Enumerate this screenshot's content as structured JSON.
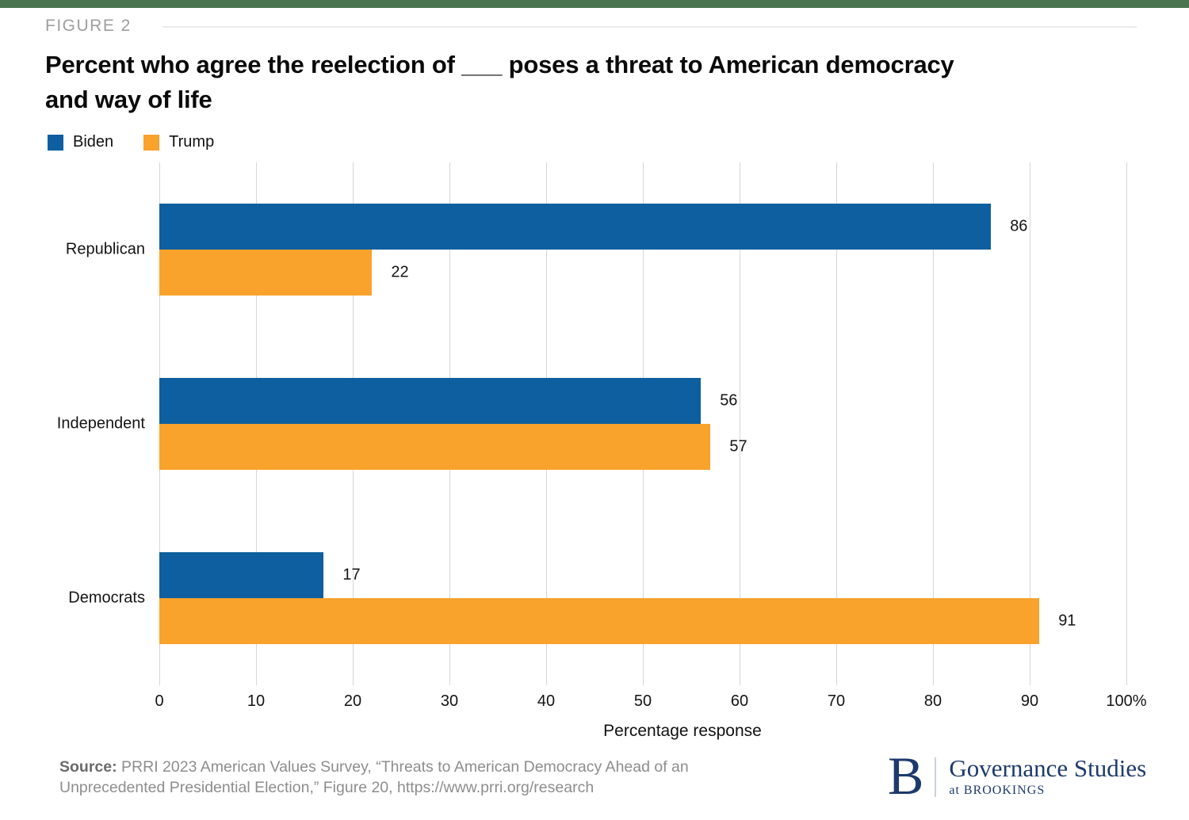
{
  "figure": {
    "label": "FIGURE 2",
    "title": "Percent who agree the reelection of ___ poses a threat to American democracy and way of life"
  },
  "colors": {
    "accent_bar": "#4a7350",
    "biden_blue": "#0d5f9f",
    "trump_orange": "#f9a22c",
    "gridline": "#d6d6d6",
    "logo_navy": "#1d3a6d"
  },
  "chart_data": {
    "type": "bar",
    "orientation": "horizontal",
    "title": "Percent who agree the reelection of ___ poses a threat to American democracy and way of life",
    "categories": [
      "Republican",
      "Independent",
      "Democrats"
    ],
    "series": [
      {
        "name": "Biden",
        "color": "#0d5f9f",
        "values": [
          86,
          56,
          17
        ]
      },
      {
        "name": "Trump",
        "color": "#f9a22c",
        "values": [
          22,
          57,
          91
        ]
      }
    ],
    "xlabel": "Percentage response",
    "xlim": [
      0,
      100
    ],
    "xticks": [
      0,
      10,
      20,
      30,
      40,
      50,
      60,
      70,
      80,
      90,
      100
    ],
    "xtick_labels": [
      "0",
      "10",
      "20",
      "30",
      "40",
      "50",
      "60",
      "70",
      "80",
      "90",
      "100%"
    ],
    "grid": true,
    "value_labels": true,
    "legend_position": "top-left"
  },
  "source": {
    "label": "Source:",
    "text": "PRRI 2023 American Values Survey, “Threats to American Democracy Ahead of an Unprecedented Presidential Election,” Figure 20, https://www.prri.org/research"
  },
  "logo": {
    "monogram": "B",
    "name": "Governance Studies",
    "tagline": "at BROOKINGS"
  }
}
